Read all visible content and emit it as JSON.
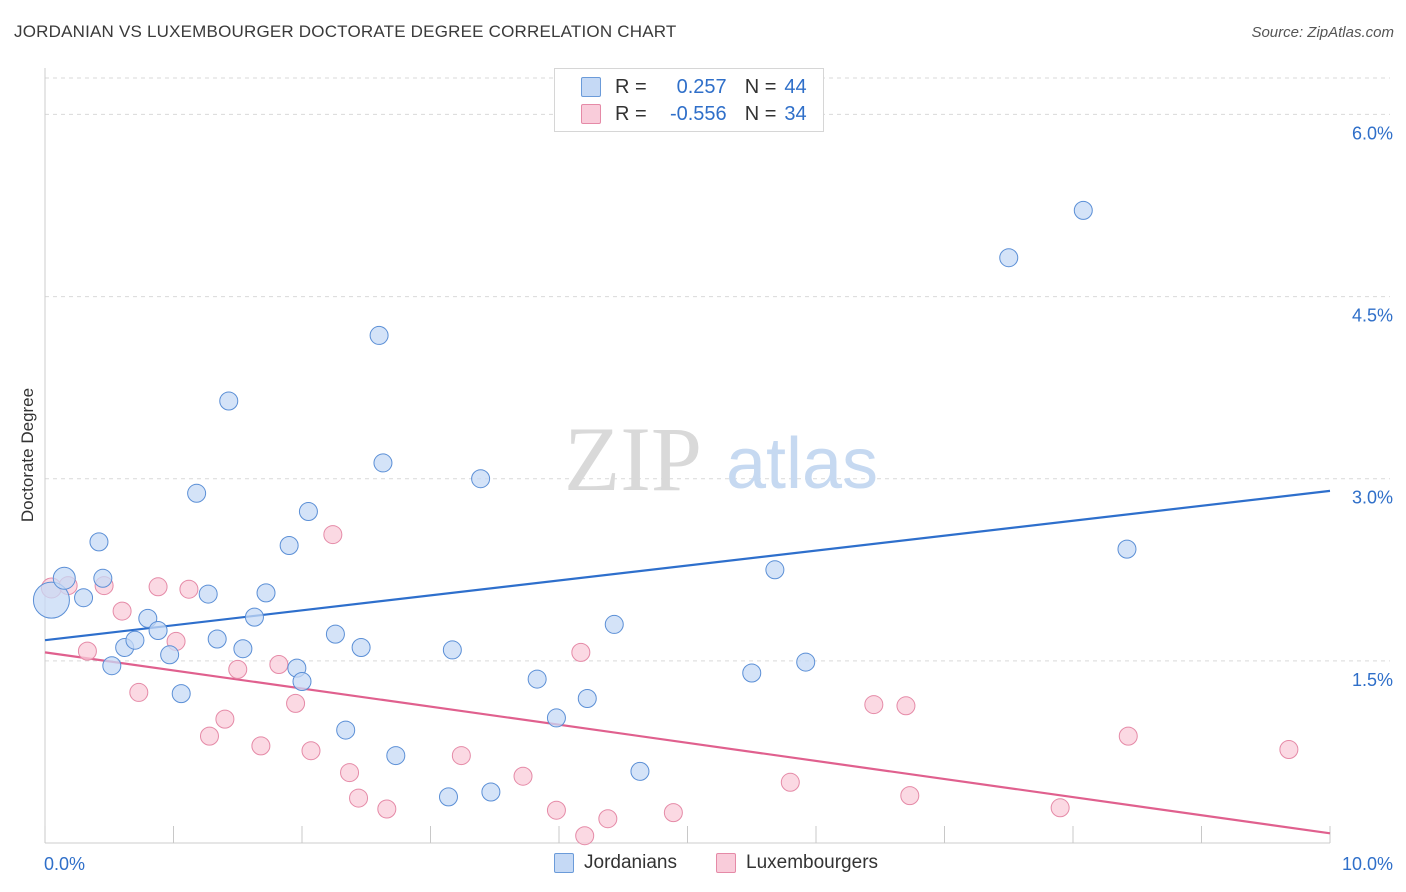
{
  "title": "JORDANIAN VS LUXEMBOURGER DOCTORATE DEGREE CORRELATION CHART",
  "source": "Source: ZipAtlas.com",
  "watermark": {
    "zip": "ZIP",
    "atlas": "atlas"
  },
  "colors": {
    "blue": "#5b8fd6",
    "blue_fill": "#c5d9f5",
    "blue_line": "#2e6fcc",
    "pink": "#e58aa7",
    "pink_fill": "#f9ccda",
    "pink_line": "#e0608e",
    "accent_text": "#2f6fc9",
    "grid": "#d9d9d9"
  },
  "legend": {
    "rows": [
      {
        "r_label": "R =",
        "r_value": "0.257",
        "n_label": "N =",
        "n_value": "44"
      },
      {
        "r_label": "R =",
        "r_value": "-0.556",
        "n_label": "N =",
        "n_value": "34"
      }
    ]
  },
  "bottom_legend": [
    "Jordanians",
    "Luxembourgers"
  ],
  "chart_data": {
    "type": "scatter",
    "title": "JORDANIAN VS LUXEMBOURGER DOCTORATE DEGREE CORRELATION CHART",
    "xlabel": "",
    "ylabel": "Doctorate Degree",
    "xlim": [
      0,
      10
    ],
    "ylim": [
      0,
      6.3
    ],
    "x_tick_labels": [
      "0.0%",
      "10.0%"
    ],
    "y_ticks": [
      1.5,
      3.0,
      4.5,
      6.0
    ],
    "y_tick_labels": [
      "1.5%",
      "3.0%",
      "4.5%",
      "6.0%"
    ],
    "grid": true,
    "legend_position": "top-center",
    "series": [
      {
        "name": "Jordanians",
        "r": 0.257,
        "n": 44,
        "trend": [
          [
            0,
            1.67
          ],
          [
            10,
            2.9
          ]
        ],
        "points": [
          [
            0.05,
            2.0,
            18
          ],
          [
            0.15,
            2.18,
            11
          ],
          [
            0.45,
            2.18,
            9
          ],
          [
            0.3,
            2.02,
            9
          ],
          [
            0.42,
            2.48,
            9
          ],
          [
            0.52,
            1.46,
            9
          ],
          [
            0.62,
            1.61,
            9
          ],
          [
            0.7,
            1.67,
            9
          ],
          [
            0.8,
            1.85,
            9
          ],
          [
            0.88,
            1.75,
            9
          ],
          [
            0.97,
            1.55,
            9
          ],
          [
            1.06,
            1.23,
            9
          ],
          [
            1.18,
            2.88,
            9
          ],
          [
            1.27,
            2.05,
            9
          ],
          [
            1.34,
            1.68,
            9
          ],
          [
            1.43,
            3.64,
            9
          ],
          [
            1.54,
            1.6,
            9
          ],
          [
            1.63,
            1.86,
            9
          ],
          [
            1.72,
            2.06,
            9
          ],
          [
            1.9,
            2.45,
            9
          ],
          [
            1.96,
            1.44,
            9
          ],
          [
            2.0,
            1.33,
            9
          ],
          [
            2.05,
            2.73,
            9
          ],
          [
            2.26,
            1.72,
            9
          ],
          [
            2.34,
            0.93,
            9
          ],
          [
            2.46,
            1.61,
            9
          ],
          [
            2.6,
            4.18,
            9
          ],
          [
            2.63,
            3.13,
            9
          ],
          [
            2.73,
            0.72,
            9
          ],
          [
            3.14,
            0.38,
            9
          ],
          [
            3.17,
            1.59,
            9
          ],
          [
            3.39,
            3.0,
            9
          ],
          [
            3.47,
            0.42,
            9
          ],
          [
            3.83,
            1.35,
            9
          ],
          [
            3.98,
            1.03,
            9
          ],
          [
            4.22,
            1.19,
            9
          ],
          [
            4.43,
            1.8,
            9
          ],
          [
            4.63,
            0.59,
            9
          ],
          [
            5.5,
            1.4,
            9
          ],
          [
            5.68,
            2.25,
            9
          ],
          [
            5.92,
            1.49,
            9
          ],
          [
            7.5,
            4.82,
            9
          ],
          [
            8.08,
            5.21,
            9
          ],
          [
            8.42,
            2.42,
            9
          ]
        ]
      },
      {
        "name": "Luxembourgers",
        "r": -0.556,
        "n": 34,
        "trend": [
          [
            0,
            1.57
          ],
          [
            10,
            0.08
          ]
        ],
        "points": [
          [
            0.05,
            2.1,
            10
          ],
          [
            0.18,
            2.12,
            9
          ],
          [
            0.33,
            1.58,
            9
          ],
          [
            0.46,
            2.12,
            9
          ],
          [
            0.6,
            1.91,
            9
          ],
          [
            0.73,
            1.24,
            9
          ],
          [
            0.88,
            2.11,
            9
          ],
          [
            1.02,
            1.66,
            9
          ],
          [
            1.12,
            2.09,
            9
          ],
          [
            1.28,
            0.88,
            9
          ],
          [
            1.4,
            1.02,
            9
          ],
          [
            1.5,
            1.43,
            9
          ],
          [
            1.68,
            0.8,
            9
          ],
          [
            1.82,
            1.47,
            9
          ],
          [
            1.95,
            1.15,
            9
          ],
          [
            2.07,
            0.76,
            9
          ],
          [
            2.24,
            2.54,
            9
          ],
          [
            2.37,
            0.58,
            9
          ],
          [
            2.44,
            0.37,
            9
          ],
          [
            2.66,
            0.28,
            9
          ],
          [
            3.24,
            0.72,
            9
          ],
          [
            3.72,
            0.55,
            9
          ],
          [
            3.98,
            0.27,
            9
          ],
          [
            4.2,
            0.06,
            9
          ],
          [
            4.17,
            1.57,
            9
          ],
          [
            4.38,
            0.2,
            9
          ],
          [
            4.89,
            0.25,
            9
          ],
          [
            5.8,
            0.5,
            9
          ],
          [
            6.45,
            1.14,
            9
          ],
          [
            6.7,
            1.13,
            9
          ],
          [
            6.73,
            0.39,
            9
          ],
          [
            7.9,
            0.29,
            9
          ],
          [
            8.43,
            0.88,
            9
          ],
          [
            9.68,
            0.77,
            9
          ]
        ]
      }
    ]
  }
}
